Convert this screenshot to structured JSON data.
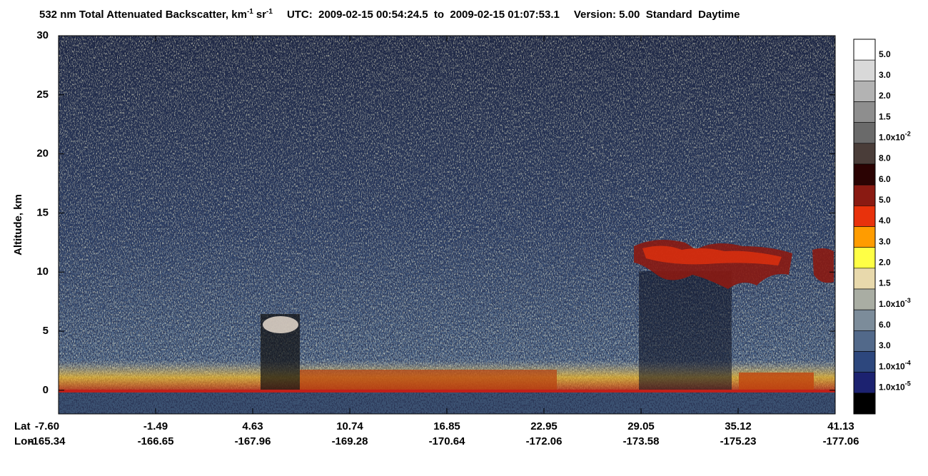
{
  "chart_data": {
    "type": "curtain",
    "title": "532 nm Total Attenuated Backscatter, km",
    "title_sup1": "-1",
    "title_unit2": "sr",
    "title_sup2": "-1",
    "utc": "UTC:  2009-02-15 00:54:24.5  to  2009-02-15 01:07:53.1",
    "version": "Version: 5.00  Standard  Daytime",
    "ylabel": "Altitude, km",
    "ylim": [
      -2,
      30
    ],
    "yticks": [
      0,
      5,
      10,
      15,
      20,
      25,
      30
    ],
    "x_row_labels": [
      "Lat",
      "Lon"
    ],
    "lat": [
      "-7.60",
      "-1.49",
      "4.63",
      "10.74",
      "16.85",
      "22.95",
      "29.05",
      "35.12",
      "41.13"
    ],
    "lon": [
      "-165.34",
      "-166.65",
      "-167.96",
      "-169.28",
      "-170.64",
      "-172.06",
      "-173.58",
      "-175.23",
      "-177.06"
    ],
    "colorbar": {
      "colors": [
        "#ffffff",
        "#d9d9d9",
        "#b3b3b3",
        "#8e8e8e",
        "#6a6a6a",
        "#4a3d39",
        "#2b0303",
        "#8a1a12",
        "#e8320c",
        "#ff9c00",
        "#ffff45",
        "#e8d9ac",
        "#a9ada3",
        "#7c8c9a",
        "#52698a",
        "#2d477d",
        "#1c2270",
        "#000000"
      ],
      "labels": [
        {
          "label": "5.0"
        },
        {
          "label": "3.0"
        },
        {
          "label": "2.0"
        },
        {
          "label": "1.5"
        },
        {
          "label": "1.0x10",
          "exp": "-2"
        },
        {
          "label": "8.0"
        },
        {
          "label": "6.0"
        },
        {
          "label": "5.0"
        },
        {
          "label": "4.0"
        },
        {
          "label": "3.0"
        },
        {
          "label": "2.0"
        },
        {
          "label": "1.5"
        },
        {
          "label": "1.0x10",
          "exp": "-3"
        },
        {
          "label": "6.0"
        },
        {
          "label": "3.0"
        },
        {
          "label": "1.0x10",
          "exp": "-4"
        },
        {
          "label": "1.0x10",
          "exp": "-5"
        }
      ]
    }
  }
}
